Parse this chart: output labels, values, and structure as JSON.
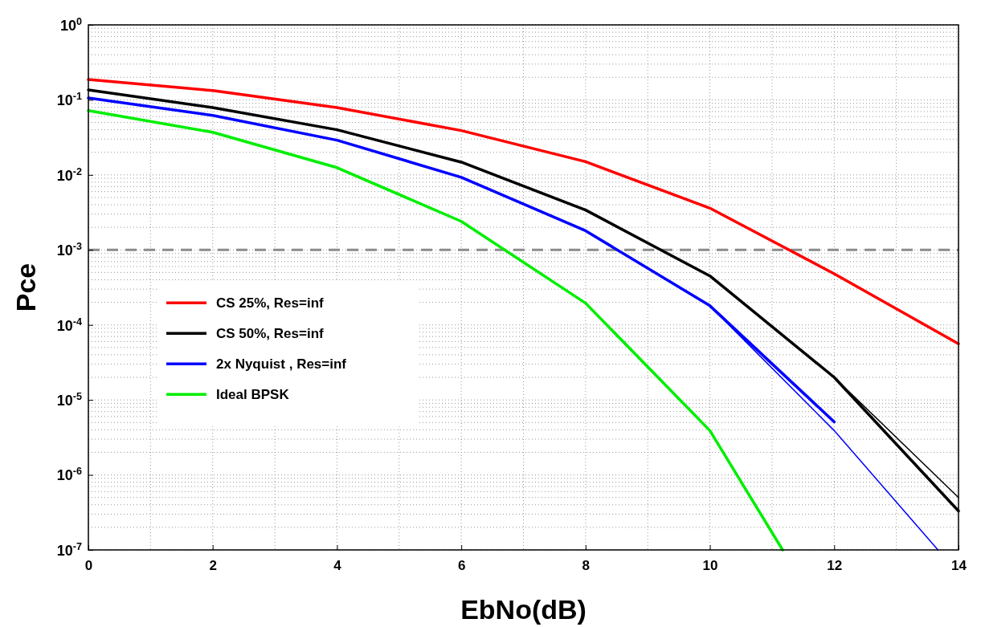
{
  "chart_data": {
    "type": "line",
    "xlabel": "EbNo(dB)",
    "ylabel": "Pce",
    "log": "y",
    "xlim": [
      0,
      14
    ],
    "xticks": [
      0,
      2,
      4,
      6,
      8,
      10,
      12,
      14
    ],
    "ylim": [
      1e-07,
      1
    ],
    "yticks": [
      {
        "value": 1e-07,
        "label": "10$^{-7}$"
      },
      {
        "value": 1e-06,
        "label": "10$^{-6}$"
      },
      {
        "value": 1e-05,
        "label": "10$^{-5}$"
      },
      {
        "value": 0.0001,
        "label": "10$^{-4}$"
      },
      {
        "value": 0.001,
        "label": "10$^{-3}$"
      },
      {
        "value": 0.01,
        "label": "10$^{-2}$"
      },
      {
        "value": 0.1,
        "label": "10$^{-1}$"
      },
      {
        "value": 1,
        "label": "10$^{0}$"
      }
    ],
    "grid": true,
    "legend": "left",
    "line_style": "solid",
    "marker": "none",
    "ref_lines": [
      {
        "axis": "y",
        "value": 0.001,
        "color": "#8c8c8c",
        "line_style": "dashed"
      }
    ],
    "series": [
      {
        "name": "CS 25%, Res=inf",
        "color": "#ff0000",
        "x": [
          0,
          2,
          4,
          6,
          8,
          10,
          12,
          14
        ],
        "values": [
          0.187,
          0.133,
          0.079,
          0.039,
          0.015,
          0.0036,
          0.00048,
          5.6e-05
        ]
      },
      {
        "name": "CS 50%, Res=inf",
        "color": "#000000",
        "x": [
          0,
          2,
          4,
          6,
          8,
          10,
          12,
          14
        ],
        "values": [
          0.136,
          0.079,
          0.04,
          0.0148,
          0.0034,
          0.00045,
          2e-05,
          3.3e-07
        ]
      },
      {
        "name": "2x Nyquist , Res=inf",
        "color": "#0000ff",
        "x": [
          0,
          2,
          4,
          6,
          8,
          10,
          12
        ],
        "values": [
          0.106,
          0.062,
          0.029,
          0.0093,
          0.0018,
          0.00018,
          5.1e-06
        ]
      },
      {
        "name": "Ideal BPSK",
        "color": "#00ee00",
        "x": [
          0,
          2,
          4,
          6,
          8,
          10,
          11.17
        ],
        "values": [
          0.072,
          0.037,
          0.0125,
          0.0024,
          0.000195,
          3.9e-06,
          1e-07
        ]
      },
      {
        "color": "#000000",
        "x": [
          10,
          12,
          14
        ],
        "values": [
          0.00045,
          2e-05,
          5e-07
        ]
      },
      {
        "color": "#0000ff",
        "x": [
          10,
          12,
          13.67
        ],
        "values": [
          0.00018,
          3.9e-06,
          1e-07
        ]
      }
    ]
  }
}
